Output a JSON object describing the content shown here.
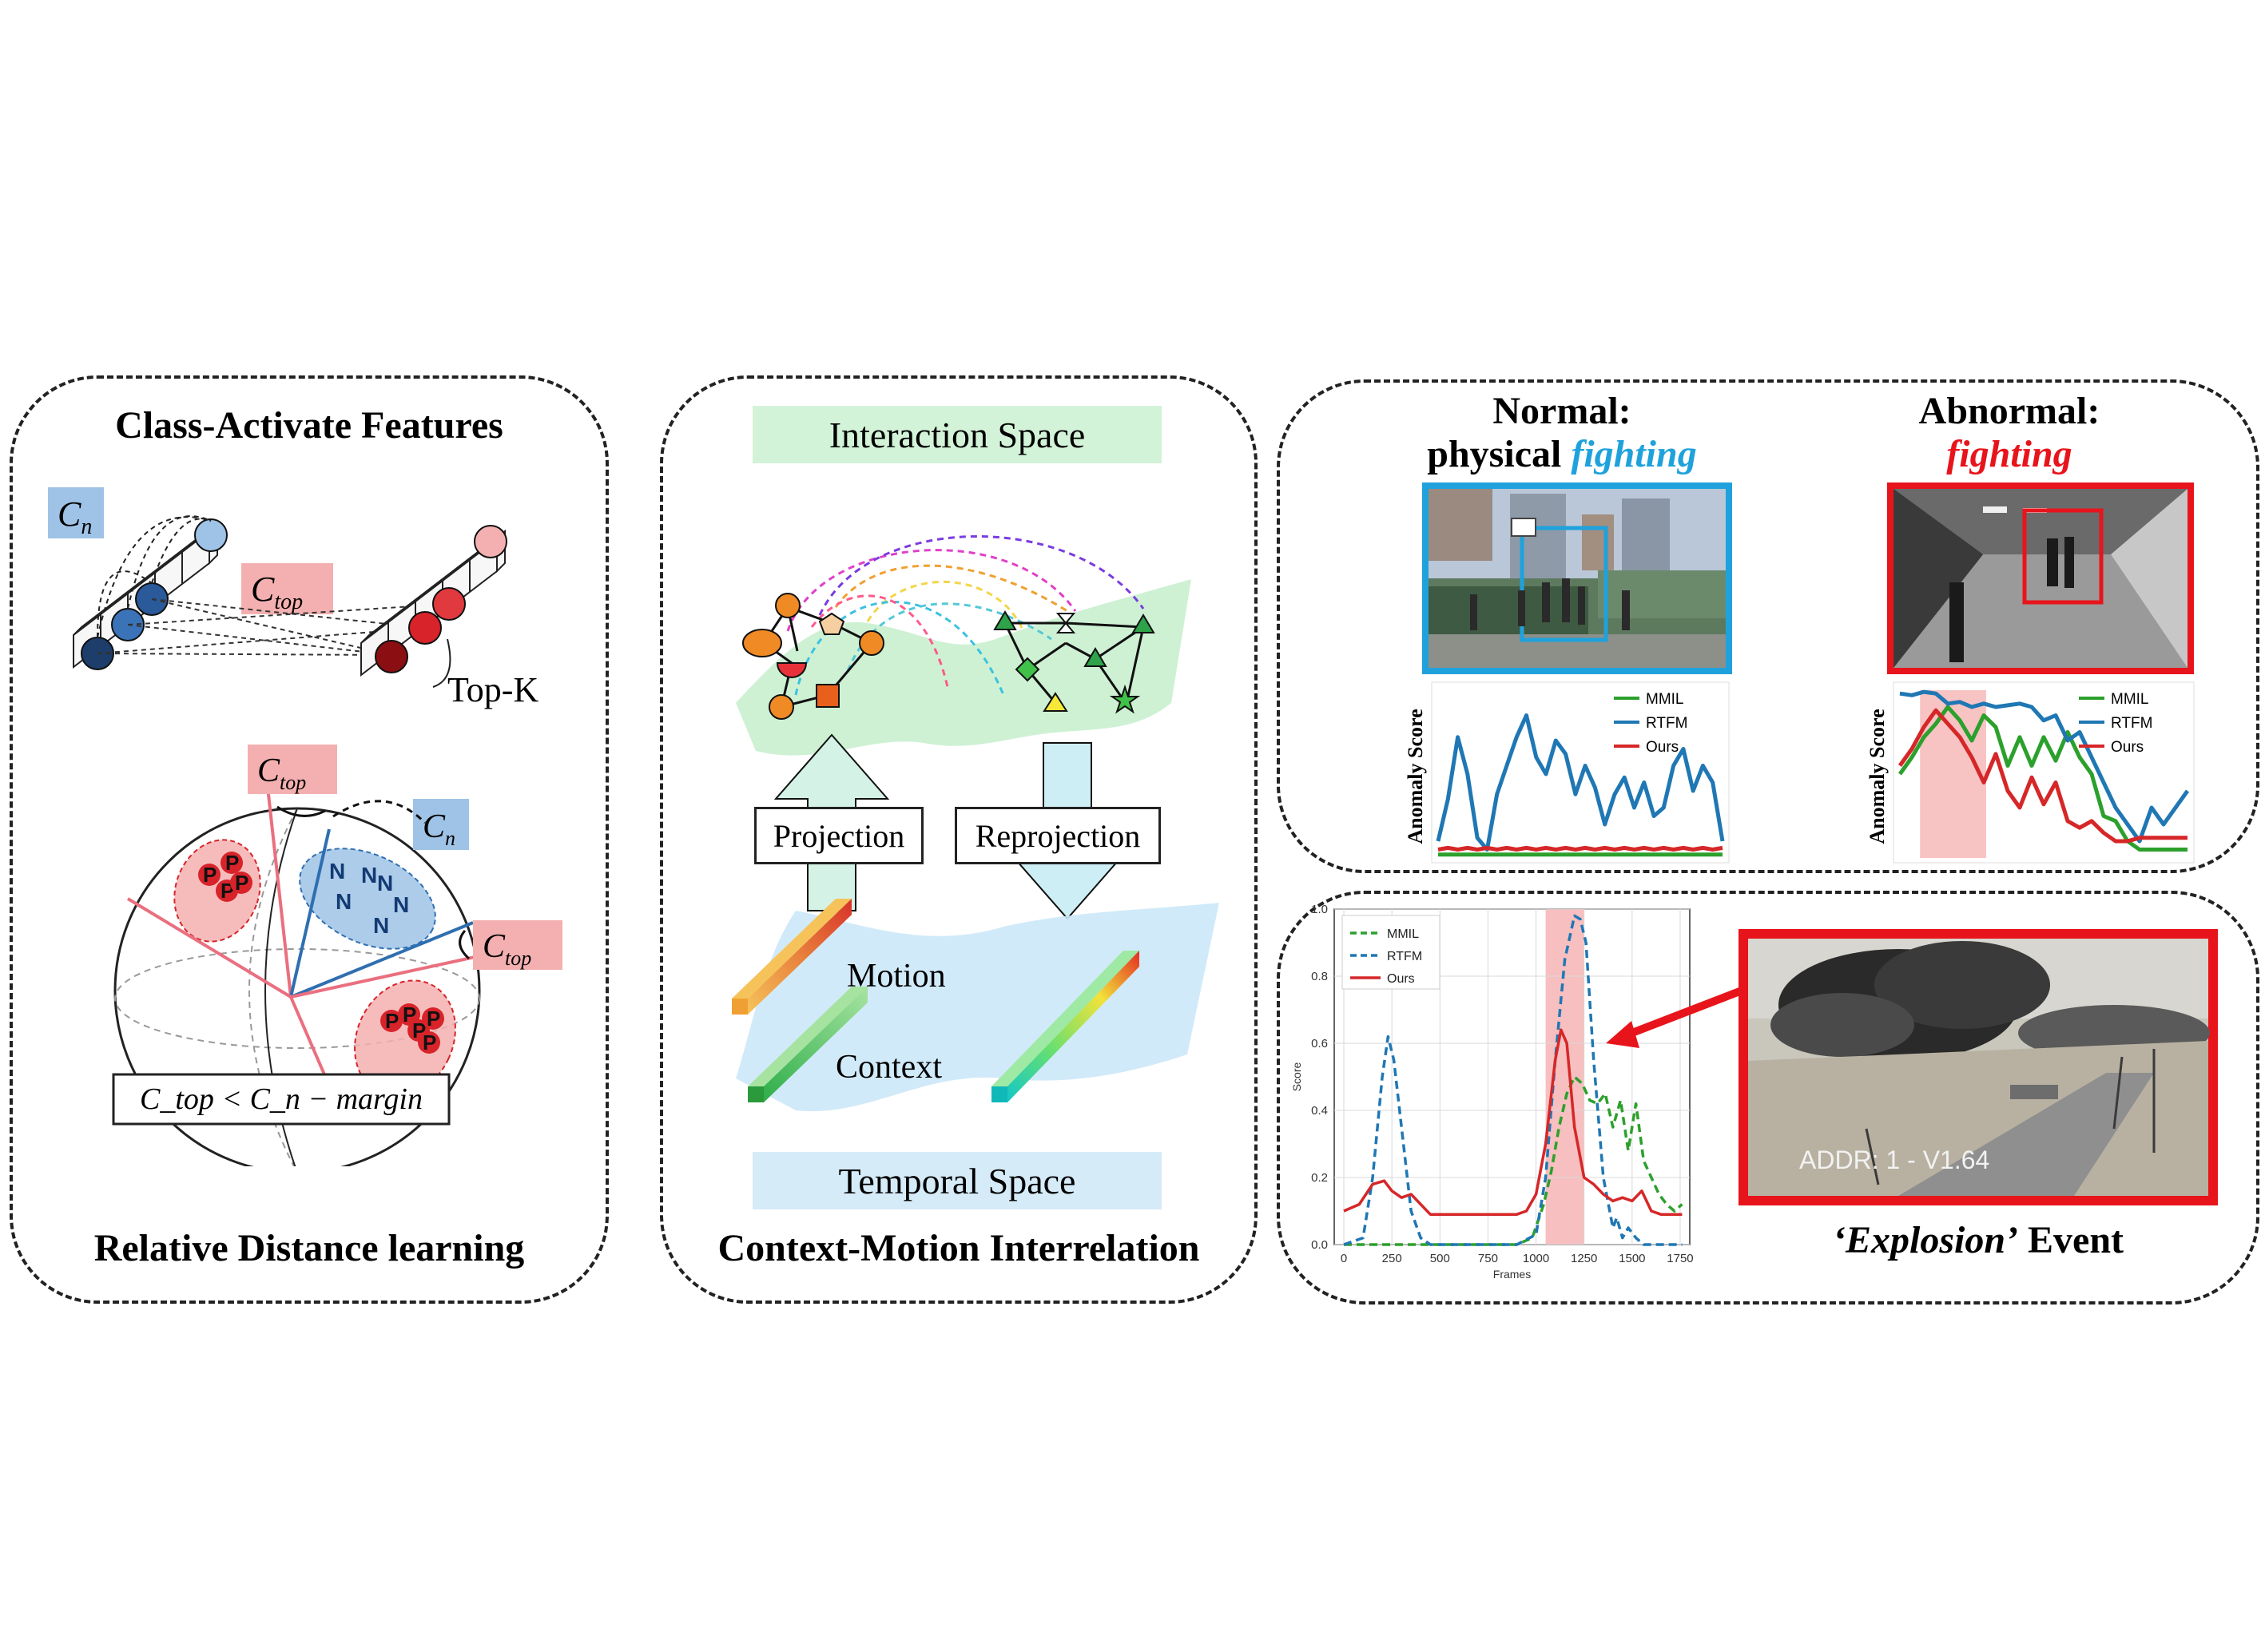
{
  "left_panel": {
    "title": "Class-Activate Features",
    "footer": "Relative Distance learning",
    "label_cn": "C",
    "label_cn_sub": "n",
    "label_ctop": "C",
    "label_ctop_sub": "top",
    "topk": "Top-K",
    "sphere_p": "P",
    "sphere_n": "N",
    "formula": "C_top < C_n − margin",
    "colors": {
      "normal": "#2f6fb0",
      "abnormal": "#d8232a",
      "normal_tag": "#9fc3e6",
      "abnormal_tag": "#f4b0b0"
    }
  },
  "middle_panel": {
    "footer": "Context-Motion Interrelation",
    "interaction_space": "Interaction Space",
    "temporal_space": "Temporal Space",
    "projection": "Projection",
    "reprojection": "Reprojection",
    "motion": "Motion",
    "context": "Context",
    "colors": {
      "interaction_band": "#d3f3d9",
      "temporal_band": "#d6ebf8"
    }
  },
  "right_top": {
    "normal_title_line1": "Normal:",
    "normal_title_word": "physical",
    "normal_title_emph": "fighting",
    "abnormal_title_line1": "Abnormal:",
    "abnormal_title_emph": "fighting",
    "ylabel": "Anomaly Score",
    "legend": [
      "MMIL",
      "RTFM",
      "Ours"
    ],
    "colors": {
      "normal": "#1fa2dc",
      "abnormal": "#e8141b",
      "mmil": "#2ca02c",
      "rtfm": "#1f77b4",
      "ours": "#d62728"
    }
  },
  "right_bottom": {
    "event_emph": "‘Explosion’",
    "event_word": "Event",
    "overlay": "ADDR: 1  - V1.64"
  },
  "chart_data": [
    {
      "type": "line",
      "panel": "normal",
      "ylabel": "Anomaly Score",
      "series": [
        {
          "name": "MMIL",
          "values": [
            0.02,
            0.02,
            0.02,
            0.02,
            0.02,
            0.02,
            0.02,
            0.02,
            0.02,
            0.02,
            0.02,
            0.02,
            0.02,
            0.02,
            0.02,
            0.02,
            0.02,
            0.02,
            0.02,
            0.02,
            0.02,
            0.02,
            0.02,
            0.02,
            0.02,
            0.02,
            0.02,
            0.02,
            0.02,
            0.02
          ]
        },
        {
          "name": "RTFM",
          "values": [
            0.1,
            0.35,
            0.72,
            0.5,
            0.12,
            0.05,
            0.38,
            0.55,
            0.72,
            0.85,
            0.6,
            0.5,
            0.7,
            0.62,
            0.38,
            0.55,
            0.42,
            0.2,
            0.38,
            0.48,
            0.3,
            0.45,
            0.25,
            0.3,
            0.55,
            0.65,
            0.4,
            0.55,
            0.45,
            0.1
          ]
        },
        {
          "name": "Ours",
          "values": [
            0.05,
            0.06,
            0.05,
            0.06,
            0.05,
            0.06,
            0.05,
            0.06,
            0.05,
            0.06,
            0.05,
            0.06,
            0.05,
            0.06,
            0.05,
            0.06,
            0.05,
            0.06,
            0.05,
            0.06,
            0.05,
            0.06,
            0.05,
            0.06,
            0.05,
            0.06,
            0.05,
            0.06,
            0.05,
            0.06
          ]
        }
      ]
    },
    {
      "type": "line",
      "panel": "abnormal",
      "ylabel": "Anomaly Score",
      "highlight": [
        0.07,
        0.3
      ],
      "series": [
        {
          "name": "MMIL",
          "values": [
            0.5,
            0.6,
            0.72,
            0.8,
            0.9,
            0.82,
            0.7,
            0.85,
            0.78,
            0.55,
            0.72,
            0.55,
            0.72,
            0.58,
            0.75,
            0.6,
            0.5,
            0.25,
            0.22,
            0.1,
            0.05,
            0.05,
            0.05,
            0.05,
            0.05
          ]
        },
        {
          "name": "RTFM",
          "values": [
            0.98,
            0.97,
            0.99,
            0.98,
            0.92,
            0.93,
            0.9,
            0.92,
            0.9,
            0.91,
            0.92,
            0.9,
            0.82,
            0.85,
            0.7,
            0.75,
            0.6,
            0.45,
            0.3,
            0.2,
            0.1,
            0.3,
            0.2,
            0.3,
            0.4
          ]
        },
        {
          "name": "Ours",
          "values": [
            0.55,
            0.65,
            0.78,
            0.88,
            0.8,
            0.72,
            0.6,
            0.45,
            0.62,
            0.4,
            0.3,
            0.48,
            0.32,
            0.45,
            0.22,
            0.18,
            0.22,
            0.15,
            0.1,
            0.1,
            0.12,
            0.12,
            0.12,
            0.12,
            0.12
          ]
        }
      ]
    },
    {
      "type": "line",
      "panel": "explosion",
      "xlabel": "Frames",
      "ylabel": "Score",
      "xlim": [
        -50,
        1800
      ],
      "ylim": [
        0,
        1.0
      ],
      "xticks": [
        "0",
        "250",
        "500",
        "750",
        "1000",
        "1250",
        "1500",
        "1750"
      ],
      "yticks": [
        "0.0",
        "0.2",
        "0.4",
        "0.6",
        "0.8",
        "1.0"
      ],
      "highlight": [
        1050,
        1250
      ],
      "grid": true,
      "legend_position": "top-left",
      "series": [
        {
          "name": "MMIL",
          "dash": true,
          "x": [
            0,
            900,
            980,
            1040,
            1080,
            1120,
            1160,
            1200,
            1240,
            1280,
            1320,
            1360,
            1400,
            1440,
            1480,
            1520,
            1560,
            1600,
            1640,
            1680,
            1720,
            1760
          ],
          "y": [
            0,
            0,
            0.02,
            0.12,
            0.22,
            0.35,
            0.45,
            0.5,
            0.48,
            0.43,
            0.42,
            0.45,
            0.35,
            0.43,
            0.28,
            0.42,
            0.25,
            0.2,
            0.15,
            0.12,
            0.1,
            0.12
          ]
        },
        {
          "name": "RTFM",
          "dash": true,
          "x": [
            0,
            100,
            150,
            200,
            230,
            260,
            300,
            350,
            400,
            450,
            500,
            900,
            1000,
            1050,
            1100,
            1150,
            1200,
            1230,
            1260,
            1300,
            1350,
            1400,
            1420,
            1450,
            1480,
            1520,
            1560,
            1600,
            1650,
            1700,
            1760
          ],
          "y": [
            0,
            0.02,
            0.2,
            0.5,
            0.62,
            0.55,
            0.35,
            0.1,
            0.02,
            0,
            0,
            0,
            0.03,
            0.2,
            0.55,
            0.85,
            0.98,
            0.97,
            0.9,
            0.55,
            0.2,
            0.05,
            0.08,
            0.02,
            0.05,
            0.02,
            0,
            0,
            0,
            0,
            0
          ]
        },
        {
          "name": "Ours",
          "dash": false,
          "x": [
            0,
            80,
            150,
            210,
            250,
            300,
            350,
            400,
            450,
            500,
            900,
            950,
            1000,
            1050,
            1100,
            1130,
            1160,
            1200,
            1250,
            1300,
            1350,
            1400,
            1450,
            1500,
            1550,
            1600,
            1650,
            1700,
            1760
          ],
          "y": [
            0.1,
            0.12,
            0.18,
            0.19,
            0.16,
            0.14,
            0.15,
            0.12,
            0.09,
            0.09,
            0.09,
            0.1,
            0.15,
            0.3,
            0.55,
            0.64,
            0.6,
            0.35,
            0.2,
            0.18,
            0.15,
            0.13,
            0.14,
            0.13,
            0.16,
            0.1,
            0.09,
            0.09,
            0.09
          ]
        }
      ]
    }
  ]
}
